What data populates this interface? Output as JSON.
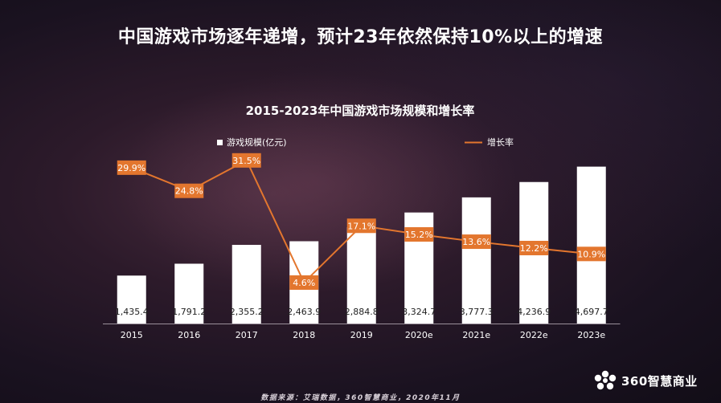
{
  "headline": "中国游戏市场逐年递增，预计23年依然保持10%以上的增速",
  "source": "数据来源：艾瑞数据，360智慧商业，2020年11月",
  "brand": {
    "name": "360智慧商业",
    "logo_icon": "360-flower-logo-icon"
  },
  "colors": {
    "bar": "#ffffff",
    "line": "#e3762e",
    "label_box": "#e3762e",
    "axis": "#9a8f9a",
    "text": "#ffffff"
  },
  "chart_data": {
    "type": "bar+line",
    "title": "2015-2023年中国游戏市场规模和增长率",
    "categories": [
      "2015",
      "2016",
      "2017",
      "2018",
      "2019",
      "2020e",
      "2021e",
      "2022e",
      "2023e"
    ],
    "series": [
      {
        "name": "游戏规模(亿元)",
        "type": "bar",
        "values": [
          1435.4,
          1791.2,
          2355.2,
          2463.9,
          2884.8,
          3324.7,
          3777.3,
          4236.9,
          4697.7
        ],
        "labels": [
          "1,435.4",
          "1,791.2",
          "2,355.2",
          "2,463.9",
          "2,884.8",
          "3,324.7",
          "3,777.3",
          "4,236.9",
          "4,697.7"
        ]
      },
      {
        "name": "增长率",
        "type": "line",
        "values": [
          29.9,
          24.8,
          31.5,
          4.6,
          17.1,
          15.2,
          13.6,
          12.2,
          10.9
        ],
        "labels": [
          "29.9%",
          "24.8%",
          "31.5%",
          "4.6%",
          "17.1%",
          "15.2%",
          "13.6%",
          "12.2%",
          "10.9%"
        ]
      }
    ],
    "ylim_bar": [
      0,
      5000
    ],
    "ylim_line": [
      0,
      35
    ],
    "legend_position": "top",
    "grid": false
  }
}
